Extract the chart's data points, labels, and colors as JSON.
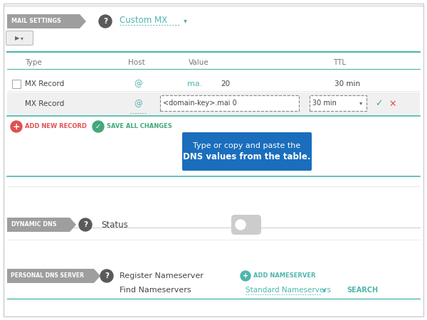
{
  "bg_color": "#ffffff",
  "border_color": "#cccccc",
  "teal_color": "#4db6ac",
  "section_bg": "#9e9e9e",
  "tooltip_bg": "#1a6ebc",
  "header_text": "#777777",
  "body_text": "#444444",
  "red_color": "#e05050",
  "green_color": "#43a87c",
  "mail_settings_label": "MAIL SETTINGS",
  "custom_mx_text": "Custom MX",
  "col_headers": [
    "Type",
    "Host",
    "Value",
    "TTL"
  ],
  "row1": [
    "MX Record",
    "@",
    "ma.",
    "20",
    "30 min"
  ],
  "row2": [
    "MX Record",
    "@",
    "<domain-key>.mai 0",
    "30 min"
  ],
  "tooltip_line1": "Type or copy and paste the",
  "tooltip_line2": "DNS values from the table.",
  "add_new_record": "ADD NEW RECORD",
  "save_all_changes": "SAVE ALL CHANGES",
  "dynamic_dns_label": "DYNAMIC DNS",
  "status_label": "Status",
  "personal_dns_label": "PERSONAL DNS SERVER",
  "register_ns": "Register Nameserver",
  "add_nameserver": "ADD NAMESERVER",
  "find_ns": "Find Nameservers",
  "standard_ns": "Standard Nameservers",
  "search_text": "SEARCH"
}
